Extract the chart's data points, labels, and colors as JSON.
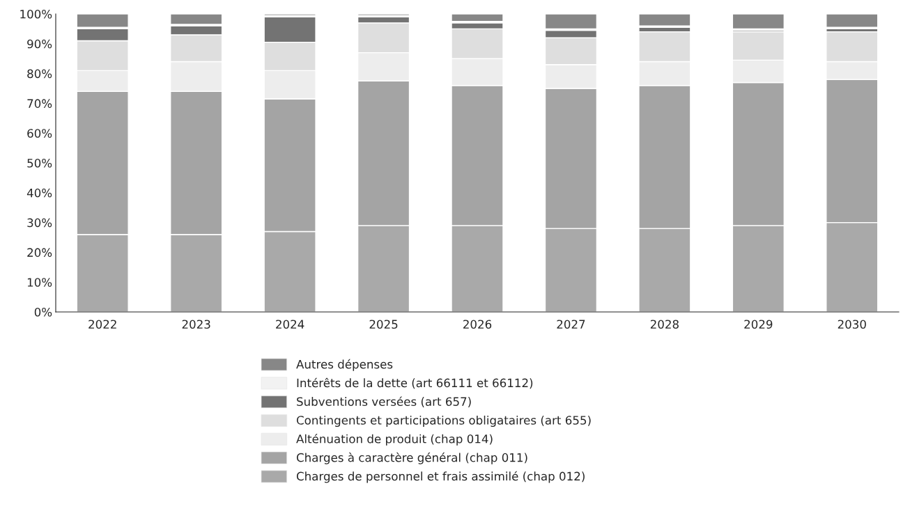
{
  "chart_data": {
    "type": "bar",
    "stacked": true,
    "categories": [
      "2022",
      "2023",
      "2024",
      "2025",
      "2026",
      "2027",
      "2028",
      "2029",
      "2030"
    ],
    "series": [
      {
        "name": "Charges de personnel et frais assimilé (chap 012)",
        "color": "#a9a9a9",
        "values": [
          26,
          26,
          27,
          29,
          29,
          28,
          28,
          29,
          30
        ]
      },
      {
        "name": "Charges à caractère général (chap 011)",
        "color": "#a4a4a4",
        "values": [
          48,
          48,
          44.5,
          48.5,
          47,
          47,
          48,
          48,
          48
        ]
      },
      {
        "name": "Alténuation de produit (chap 014)",
        "color": "#ededed",
        "values": [
          7,
          10,
          9.5,
          9.5,
          9,
          8,
          8,
          7.5,
          6
        ]
      },
      {
        "name": "Contingents et participations obligataires (art 655)",
        "color": "#dedede",
        "values": [
          10,
          9,
          9.5,
          10,
          10,
          9,
          10,
          9.5,
          10
        ]
      },
      {
        "name": "Subventions versées (art 657)",
        "color": "#737373",
        "values": [
          4,
          3,
          8.5,
          2,
          2,
          2.5,
          1.5,
          0.5,
          1
        ]
      },
      {
        "name": "Intérêts de la dette (art 66111 et 66112)",
        "color": "#f2f2f2",
        "values": [
          0.5,
          0.5,
          0.5,
          0.5,
          0.5,
          0.5,
          0.5,
          0.5,
          0.5
        ]
      },
      {
        "name": "Autres dépenses",
        "color": "#878787",
        "values": [
          4.5,
          3.5,
          0.5,
          0.5,
          2.5,
          5,
          4,
          5,
          4.5
        ]
      }
    ],
    "ylim": [
      0,
      100
    ],
    "yticks": [
      {
        "value": 0,
        "label": "0%"
      },
      {
        "value": 10,
        "label": "10%"
      },
      {
        "value": 20,
        "label": "20%"
      },
      {
        "value": 30,
        "label": "30%"
      },
      {
        "value": 40,
        "label": "40%"
      },
      {
        "value": 50,
        "label": "50%"
      },
      {
        "value": 60,
        "label": "60%"
      },
      {
        "value": 70,
        "label": "70%"
      },
      {
        "value": 80,
        "label": "80%"
      },
      {
        "value": 90,
        "label": "90%"
      },
      {
        "value": 100,
        "label": "100%"
      }
    ],
    "grid": false,
    "legend": "bottom"
  }
}
